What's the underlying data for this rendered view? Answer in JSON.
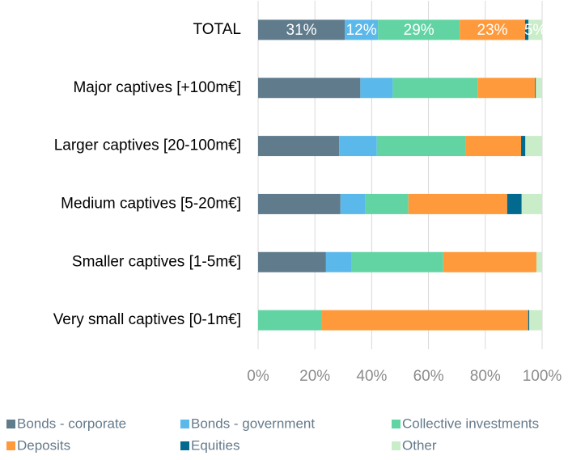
{
  "chart_data": {
    "type": "bar",
    "orientation": "horizontal",
    "stacked": true,
    "categories": [
      "TOTAL",
      "Major captives [+100m€]",
      "Larger captives [20-100m€]",
      "Medium captives [5-20m€]",
      "Smaller captives [1-5m€]",
      "Very small captives [0-1m€]"
    ],
    "series": [
      {
        "name": "Bonds - corporate",
        "color": "#5f7b8c",
        "values": [
          30.5,
          36,
          28.5,
          29,
          23.9,
          0
        ],
        "value_labels": [
          "31%",
          null,
          null,
          null,
          null,
          null
        ]
      },
      {
        "name": "Bonds - government",
        "color": "#5bb8ea",
        "values": [
          11.7,
          11.4,
          13.3,
          8.8,
          9.1,
          0
        ],
        "value_labels": [
          "12%",
          null,
          null,
          null,
          null,
          null
        ]
      },
      {
        "name": "Collective investments",
        "color": "#62d4a4",
        "values": [
          28.8,
          29.9,
          31.3,
          15.1,
          32.2,
          22.5
        ],
        "value_labels": [
          "29%",
          null,
          null,
          null,
          null,
          null
        ]
      },
      {
        "name": "Deposits",
        "color": "#ff9a3c",
        "values": [
          23,
          20.2,
          19.5,
          34.8,
          32.8,
          72.6
        ],
        "value_labels": [
          "23%",
          null,
          null,
          null,
          null,
          null
        ]
      },
      {
        "name": "Equities",
        "color": "#016a8e",
        "values": [
          1.2,
          0.3,
          1.5,
          5.1,
          0,
          0.4
        ]
      },
      {
        "name": "Other",
        "color": "#c9edc9",
        "values": [
          4.8,
          2.2,
          5.9,
          7.2,
          2,
          4.5
        ],
        "value_labels": [
          "5%",
          null,
          null,
          null,
          null,
          null
        ]
      }
    ],
    "xlim": [
      0,
      100
    ],
    "xticks": [
      {
        "value": 0,
        "label": "0%"
      },
      {
        "value": 20,
        "label": "20%"
      },
      {
        "value": 40,
        "label": "40%"
      },
      {
        "value": 60,
        "label": "60%"
      },
      {
        "value": 80,
        "label": "80%"
      },
      {
        "value": 100,
        "label": "100%"
      }
    ],
    "grid": true,
    "legend": "bottom"
  }
}
